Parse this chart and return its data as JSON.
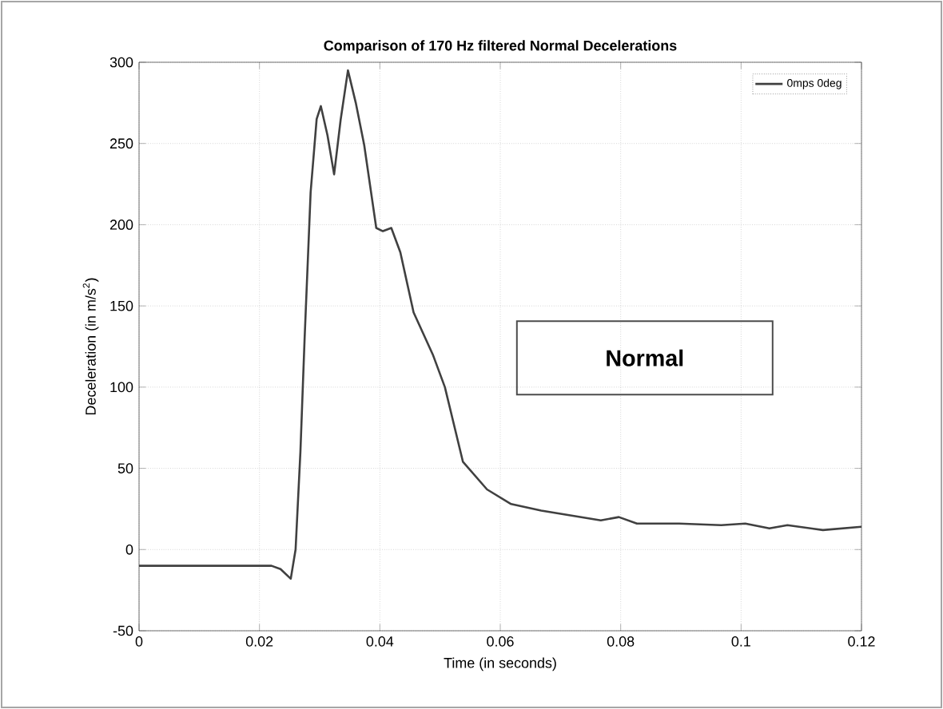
{
  "chart_data": {
    "type": "line",
    "title": "Comparison of 170 Hz filtered Normal Decelerations",
    "xlabel": "Time (in seconds)",
    "ylabel": "Deceleration (in m/s$^{2}$)",
    "annotations": [
      "Normal"
    ],
    "x": [
      0,
      0.01,
      0.02,
      0.022,
      0.0235,
      0.0252,
      0.026,
      0.0268,
      0.0275,
      0.0285,
      0.0295,
      0.0302,
      0.0313,
      0.0324,
      0.0335,
      0.0347,
      0.036,
      0.0374,
      0.0394,
      0.0405,
      0.0419,
      0.0434,
      0.0456,
      0.0488,
      0.0508,
      0.0538,
      0.0578,
      0.0618,
      0.0668,
      0.0767,
      0.0797,
      0.0827,
      0.0897,
      0.0967,
      0.1007,
      0.1047,
      0.1077,
      0.1136,
      0.12
    ],
    "series": [
      {
        "name": "0mps 0deg",
        "color": "#404040",
        "values": [
          -10,
          -10,
          -10,
          -10,
          -12,
          -18,
          0,
          60,
          130,
          220,
          265,
          273,
          255,
          231,
          265,
          295,
          275,
          249,
          198,
          196,
          198,
          183,
          146,
          120,
          100,
          54,
          37,
          28,
          24,
          18,
          20,
          16,
          16,
          15,
          16,
          13,
          15,
          12,
          14
        ]
      }
    ],
    "xlim": [
      0,
      0.12
    ],
    "ylim": [
      -50,
      300
    ],
    "xticks": [
      0,
      0.02,
      0.04,
      0.06,
      0.08,
      0.1,
      0.12
    ],
    "yticks": [
      -50,
      0,
      50,
      100,
      150,
      200,
      250,
      300
    ],
    "grid": true,
    "legend": "top right",
    "line_style": "solid",
    "marker": "none"
  }
}
